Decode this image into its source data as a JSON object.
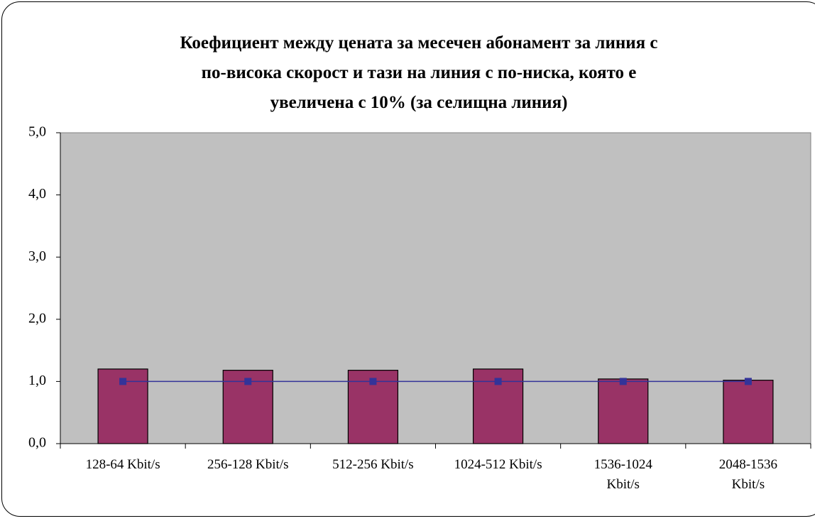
{
  "chart_data": {
    "type": "bar",
    "title": "Коефициент между цената за месечен абонамент за линия с\nпо-висока скорост и тази на линия с по-ниска, която е\nувеличена с 10% (за селищна линия)",
    "categories": [
      "128-64 Kbit/s",
      "256-128 Kbit/s",
      "512-256 Kbit/s",
      "1024-512 Kbit/s",
      "1536-1024\nKbit/s",
      "2048-1536\nKbit/s"
    ],
    "series": [
      {
        "type": "bar",
        "color": "#993366",
        "values": [
          1.2,
          1.18,
          1.18,
          1.2,
          1.04,
          1.02
        ]
      },
      {
        "type": "line",
        "color": "#333399",
        "values": [
          1.0,
          1.0,
          1.0,
          1.0,
          1.0,
          1.0
        ]
      }
    ],
    "ylim": [
      0,
      5
    ],
    "yticks": [
      {
        "value": 0,
        "label": "0,0"
      },
      {
        "value": 1,
        "label": "1,0"
      },
      {
        "value": 2,
        "label": "2,0"
      },
      {
        "value": 3,
        "label": "3,0"
      },
      {
        "value": 4,
        "label": "4,0"
      },
      {
        "value": 5,
        "label": "5,0"
      }
    ],
    "plot_background": "#c0c0c0"
  }
}
